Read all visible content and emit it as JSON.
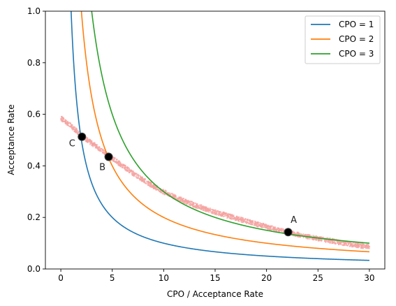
{
  "chart_data": {
    "type": "line",
    "title": "",
    "xlabel": "CPO / Acceptance Rate",
    "ylabel": "Acceptance Rate",
    "xlim": [
      -1.5,
      31.5
    ],
    "ylim": [
      0.0,
      1.0
    ],
    "xticks": [
      0,
      5,
      10,
      15,
      20,
      25,
      30
    ],
    "yticks": [
      0.0,
      0.2,
      0.4,
      0.6,
      0.8,
      1.0
    ],
    "xtick_labels": [
      "0",
      "5",
      "10",
      "15",
      "20",
      "25",
      "30"
    ],
    "ytick_labels": [
      "0.0",
      "0.2",
      "0.4",
      "0.6",
      "0.8",
      "1.0"
    ],
    "grid": false,
    "legend_position": "top-right",
    "series": [
      {
        "name": "CPO = 1",
        "cpo": 1,
        "color": "#1f77b4",
        "x_range": [
          0.5,
          30
        ]
      },
      {
        "name": "CPO = 2",
        "cpo": 2,
        "color": "#ff7f0e",
        "x_range": [
          0.5,
          30
        ]
      },
      {
        "name": "CPO = 3",
        "cpo": 3,
        "color": "#2ca02c",
        "x_range": [
          0.5,
          30
        ]
      }
    ],
    "scatter": {
      "color": "#f4a3a0",
      "points": [
        [
          0.0,
          0.585
        ],
        [
          1.0,
          0.555
        ],
        [
          2.0,
          0.517
        ],
        [
          3.0,
          0.488
        ],
        [
          4.0,
          0.46
        ],
        [
          5.0,
          0.43
        ],
        [
          6.0,
          0.4
        ],
        [
          7.0,
          0.372
        ],
        [
          8.0,
          0.346
        ],
        [
          9.0,
          0.321
        ],
        [
          10.0,
          0.299
        ],
        [
          11.0,
          0.281
        ],
        [
          12.0,
          0.264
        ],
        [
          13.0,
          0.248
        ],
        [
          14.0,
          0.234
        ],
        [
          15.0,
          0.221
        ],
        [
          16.0,
          0.209
        ],
        [
          17.0,
          0.197
        ],
        [
          18.0,
          0.186
        ],
        [
          19.0,
          0.175
        ],
        [
          20.0,
          0.164
        ],
        [
          21.0,
          0.153
        ],
        [
          22.0,
          0.143
        ],
        [
          23.0,
          0.134
        ],
        [
          24.0,
          0.126
        ],
        [
          25.0,
          0.118
        ],
        [
          26.0,
          0.111
        ],
        [
          27.0,
          0.104
        ],
        [
          28.0,
          0.097
        ],
        [
          29.0,
          0.091
        ],
        [
          30.0,
          0.085
        ]
      ]
    },
    "annotated_points": [
      {
        "label": "A",
        "x": 22.1,
        "y": 0.143
      },
      {
        "label": "B",
        "x": 4.65,
        "y": 0.435
      },
      {
        "label": "C",
        "x": 2.05,
        "y": 0.513
      }
    ]
  }
}
